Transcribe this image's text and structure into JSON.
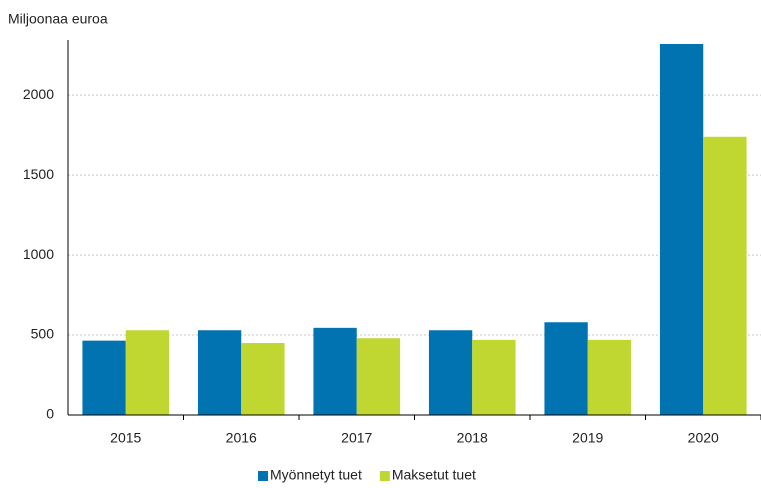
{
  "chart_data": {
    "type": "bar",
    "y_label": "Miljoonaa euroa",
    "categories": [
      "2015",
      "2016",
      "2017",
      "2018",
      "2019",
      "2020"
    ],
    "series": [
      {
        "name": "Myönnetyt tuet",
        "color": "#0073b0",
        "values": [
          465,
          530,
          545,
          530,
          580,
          2320
        ]
      },
      {
        "name": "Maksetut tuet",
        "color": "#bfd730",
        "values": [
          530,
          450,
          480,
          470,
          470,
          1740
        ]
      }
    ],
    "ylim": [
      0,
      2345
    ],
    "yticks": [
      0,
      500,
      1000,
      1500,
      2000
    ],
    "grid": true,
    "legend": "bottom"
  }
}
